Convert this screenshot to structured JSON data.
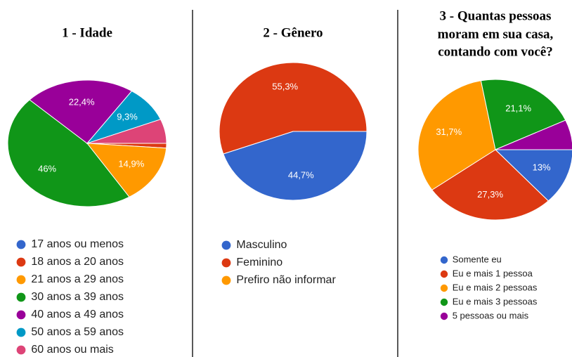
{
  "chart_data": [
    {
      "type": "pie",
      "title": [
        "1 - Idade"
      ],
      "categories": [
        "17 anos ou menos",
        "18 anos a 20 anos",
        "21 anos a 29 anos",
        "30 anos a 39 anos",
        "40 anos a 49 anos",
        "50 anos a 59 anos",
        "60 anos ou mais"
      ],
      "values": [
        0,
        1.2,
        14.9,
        46,
        22.4,
        9.3,
        6.2
      ],
      "value_labels": [
        null,
        null,
        "14,9%",
        "46%",
        "22,4%",
        "9,3%",
        null
      ],
      "colors": [
        "#3366cc",
        "#dc3912",
        "#ff9900",
        "#109618",
        "#990099",
        "#0099c6",
        "#dd4477"
      ]
    },
    {
      "type": "pie",
      "title": [
        "2 - Gênero"
      ],
      "categories": [
        "Masculino",
        "Feminino",
        "Prefiro não informar"
      ],
      "values": [
        44.7,
        55.3,
        0
      ],
      "value_labels": [
        "44,7%",
        "55,3%",
        null
      ],
      "colors": [
        "#3366cc",
        "#dc3912",
        "#ff9900"
      ]
    },
    {
      "type": "pie",
      "title": [
        "3 - Quantas pessoas",
        "moram em sua casa,",
        "contando com você?"
      ],
      "categories": [
        "Somente eu",
        "Eu e mais 1 pessoa",
        "Eu e mais 2 pessoas",
        "Eu e mais 3 pessoas",
        "5 pessoas ou mais"
      ],
      "values": [
        13,
        27.3,
        31.7,
        21.1,
        6.9
      ],
      "value_labels": [
        "13%",
        "27,3%",
        "31,7%",
        "21,1%",
        null
      ],
      "colors": [
        "#3366cc",
        "#dc3912",
        "#ff9900",
        "#109618",
        "#990099"
      ]
    }
  ]
}
